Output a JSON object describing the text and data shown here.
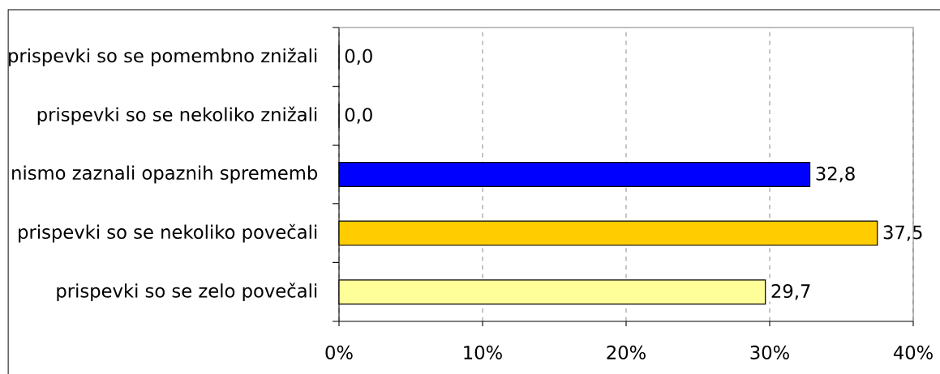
{
  "chart_data": {
    "type": "bar",
    "orientation": "horizontal",
    "categories": [
      "prispevki so se pomembno znižali",
      "prispevki so se nekoliko znižali",
      "nismo zaznali opaznih sprememb",
      "prispevki so se nekoliko povečali",
      "prispevki so se zelo povečali"
    ],
    "values": [
      0,
      0,
      32.8,
      37.5,
      29.7
    ],
    "colors": [
      null,
      null,
      "#0000ff",
      "#ffcc00",
      "#ffff99"
    ],
    "value_labels": [
      "0,0",
      "0,0",
      "32,8",
      "37,5",
      "29,7"
    ],
    "xlim": [
      0,
      40
    ],
    "xticks": [
      {
        "value": 0,
        "label": "0%"
      },
      {
        "value": 10,
        "label": "10%"
      },
      {
        "value": 20,
        "label": "20%"
      },
      {
        "value": 30,
        "label": "30%"
      },
      {
        "value": 40,
        "label": "40%"
      }
    ],
    "grid": "x"
  }
}
